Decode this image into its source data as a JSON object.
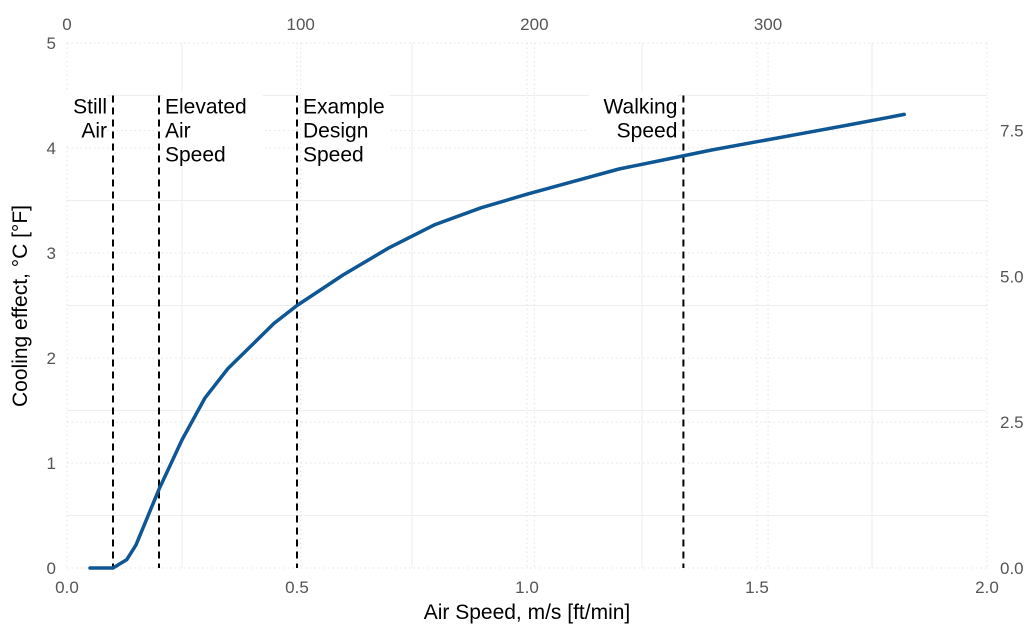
{
  "chart_data": {
    "type": "line",
    "title": "",
    "xlabel": "Air Speed, m/s [ft/min]",
    "ylabel": "Cooling effect, °C [°F]",
    "xlim": [
      0,
      2
    ],
    "ylim": [
      0,
      5
    ],
    "x_ticks": [
      "0.0",
      "0.5",
      "1.0",
      "1.5",
      "2.0"
    ],
    "y_ticks": [
      "0",
      "1",
      "2",
      "3",
      "4",
      "5"
    ],
    "secondary_x_axis": {
      "label": "",
      "position": "top",
      "unit_per_primary": 196.85,
      "ticks": [
        "0",
        "100",
        "200",
        "300"
      ]
    },
    "secondary_y_axis": {
      "label": "",
      "position": "right",
      "unit_per_primary": 1.8,
      "ticks": [
        "0.0",
        "2.5",
        "5.0",
        "7.5"
      ]
    },
    "grid": true,
    "line_color": "#0f5694",
    "series": [
      {
        "x": [
          0.05,
          0.1,
          0.13,
          0.15,
          0.2,
          0.25,
          0.3,
          0.35,
          0.45,
          0.5,
          0.6,
          0.7,
          0.8,
          0.9,
          1.0,
          1.1,
          1.2,
          1.3,
          1.4,
          1.5,
          1.6,
          1.7,
          1.82
        ],
        "y": [
          0.0,
          0.0,
          0.08,
          0.22,
          0.75,
          1.22,
          1.62,
          1.9,
          2.33,
          2.5,
          2.79,
          3.05,
          3.27,
          3.43,
          3.56,
          3.68,
          3.8,
          3.89,
          3.98,
          4.06,
          4.14,
          4.22,
          4.32
        ]
      }
    ],
    "annotations": [
      {
        "x": 0.1,
        "lines": [
          "Still",
          "Air"
        ],
        "align": "right"
      },
      {
        "x": 0.2,
        "lines": [
          "Elevated",
          "Air",
          "Speed"
        ],
        "align": "left"
      },
      {
        "x": 0.5,
        "lines": [
          "Example",
          "Design",
          "Speed"
        ],
        "align": "left"
      },
      {
        "x": 1.34,
        "lines": [
          "Walking",
          "Speed"
        ],
        "align": "right"
      }
    ],
    "annotation_line_top": 4.5
  }
}
